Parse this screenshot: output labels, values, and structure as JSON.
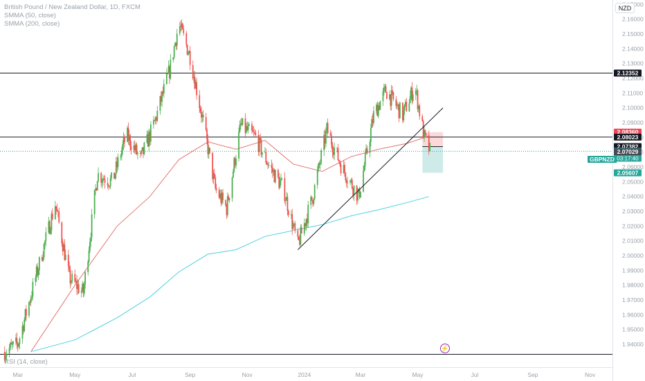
{
  "header": {
    "title": "British Pound / New Zealand Dollar, 1D, FXCM",
    "indicator_1": "SMMA (50, close)",
    "indicator_2": "SMMA (200, close)",
    "currency": "NZD"
  },
  "rsi_label": "RSI (14, close)",
  "symbol_tag": "GBPNZD",
  "colors": {
    "up": "#26a69a",
    "up_body": "#4caf50",
    "down": "#ef5350",
    "smma50": "#e57373",
    "smma200": "#4dd0e1",
    "grid": "#ffffff",
    "axis_text": "#9aa0a8",
    "black_tag": "#131722",
    "red_tag": "#ef4555",
    "green_tag": "#26a69a"
  },
  "chart_data": {
    "type": "line",
    "title": "British Pound / New Zealand Dollar, 1D, FXCM",
    "y_axis": {
      "ticks": [
        "2.17000",
        "2.16000",
        "2.15000",
        "2.14000",
        "2.13000",
        "2.12000",
        "2.11000",
        "2.10000",
        "2.09000",
        "2.08000",
        "2.07000",
        "2.06000",
        "2.05000",
        "2.04000",
        "2.03000",
        "2.02000",
        "2.01000",
        "2.00000",
        "1.99000",
        "1.98000",
        "1.97000",
        "1.96000",
        "1.95000",
        "1.94000"
      ],
      "range": [
        1.933,
        2.173
      ]
    },
    "x_axis": {
      "ticks": [
        "Mar",
        "May",
        "Jul",
        "Sep",
        "Nov",
        "2024",
        "Mar",
        "May",
        "Jul",
        "Sep",
        "Nov"
      ]
    },
    "price_path": [
      [
        "2023-02-15",
        1.935
      ],
      [
        "2023-03-01",
        1.94
      ],
      [
        "2023-03-20",
        1.985
      ],
      [
        "2023-04-10",
        2.035
      ],
      [
        "2023-04-25",
        1.985
      ],
      [
        "2023-05-10",
        1.975
      ],
      [
        "2023-05-25",
        2.055
      ],
      [
        "2023-06-10",
        2.05
      ],
      [
        "2023-06-25",
        2.082
      ],
      [
        "2023-07-10",
        2.065
      ],
      [
        "2023-07-25",
        2.09
      ],
      [
        "2023-08-10",
        2.125
      ],
      [
        "2023-08-20",
        2.157
      ],
      [
        "2023-09-01",
        2.135
      ],
      [
        "2023-09-15",
        2.09
      ],
      [
        "2023-09-28",
        2.045
      ],
      [
        "2023-10-10",
        2.032
      ],
      [
        "2023-10-25",
        2.088
      ],
      [
        "2023-11-10",
        2.08
      ],
      [
        "2023-11-25",
        2.06
      ],
      [
        "2023-12-10",
        2.045
      ],
      [
        "2023-12-25",
        2.007
      ],
      [
        "2024-01-10",
        2.04
      ],
      [
        "2024-01-25",
        2.085
      ],
      [
        "2024-02-10",
        2.06
      ],
      [
        "2024-02-28",
        2.04
      ],
      [
        "2024-03-15",
        2.095
      ],
      [
        "2024-03-28",
        2.112
      ],
      [
        "2024-04-15",
        2.095
      ],
      [
        "2024-04-28",
        2.115
      ],
      [
        "2024-05-08",
        2.08
      ],
      [
        "2024-05-14",
        2.071
      ]
    ],
    "series": [
      {
        "name": "SMMA (50, close)",
        "points": [
          [
            "2023-03-15",
            1.935
          ],
          [
            "2023-05-01",
            1.98
          ],
          [
            "2023-06-15",
            2.02
          ],
          [
            "2023-07-20",
            2.04
          ],
          [
            "2023-08-20",
            2.065
          ],
          [
            "2023-09-20",
            2.077
          ],
          [
            "2023-10-20",
            2.072
          ],
          [
            "2023-11-20",
            2.078
          ],
          [
            "2023-12-20",
            2.062
          ],
          [
            "2024-01-20",
            2.057
          ],
          [
            "2024-02-20",
            2.067
          ],
          [
            "2024-03-20",
            2.072
          ],
          [
            "2024-04-20",
            2.076
          ],
          [
            "2024-05-13",
            2.081
          ]
        ]
      },
      {
        "name": "SMMA (200, close)",
        "points": [
          [
            "2023-03-15",
            1.935
          ],
          [
            "2023-05-01",
            1.943
          ],
          [
            "2023-06-15",
            1.958
          ],
          [
            "2023-07-20",
            1.972
          ],
          [
            "2023-08-20",
            1.989
          ],
          [
            "2023-09-20",
            2.001
          ],
          [
            "2023-10-20",
            2.004
          ],
          [
            "2023-11-20",
            2.013
          ],
          [
            "2023-12-20",
            2.017
          ],
          [
            "2024-01-20",
            2.021
          ],
          [
            "2024-02-20",
            2.027
          ],
          [
            "2024-03-20",
            2.031
          ],
          [
            "2024-04-20",
            2.036
          ],
          [
            "2024-05-13",
            2.04
          ]
        ]
      }
    ],
    "horizontal_lines": [
      2.12352,
      2.08023
    ],
    "trendline": [
      [
        "2023-12-25",
        2.004
      ],
      [
        "2024-05-28",
        2.1
      ]
    ],
    "position": {
      "entry": 2.07382,
      "stop": 2.0836,
      "target": 2.05607,
      "start": "2024-05-06",
      "end": "2024-05-28"
    },
    "price_labels": [
      {
        "value": 2.12352,
        "text": "2.12352",
        "style": "black"
      },
      {
        "value": 2.0836,
        "text": "2.08360",
        "style": "red"
      },
      {
        "value": 2.08023,
        "text": "2.08023",
        "style": "black"
      },
      {
        "value": 2.07382,
        "text": "2.07382",
        "style": "black"
      },
      {
        "value": 2.07062,
        "text": "2.07062",
        "style": "green",
        "sub": "03:17:40"
      },
      {
        "value": 2.07029,
        "text": "2.07029",
        "style": "dark"
      },
      {
        "value": 2.05607,
        "text": "2.05607",
        "style": "green"
      }
    ]
  }
}
